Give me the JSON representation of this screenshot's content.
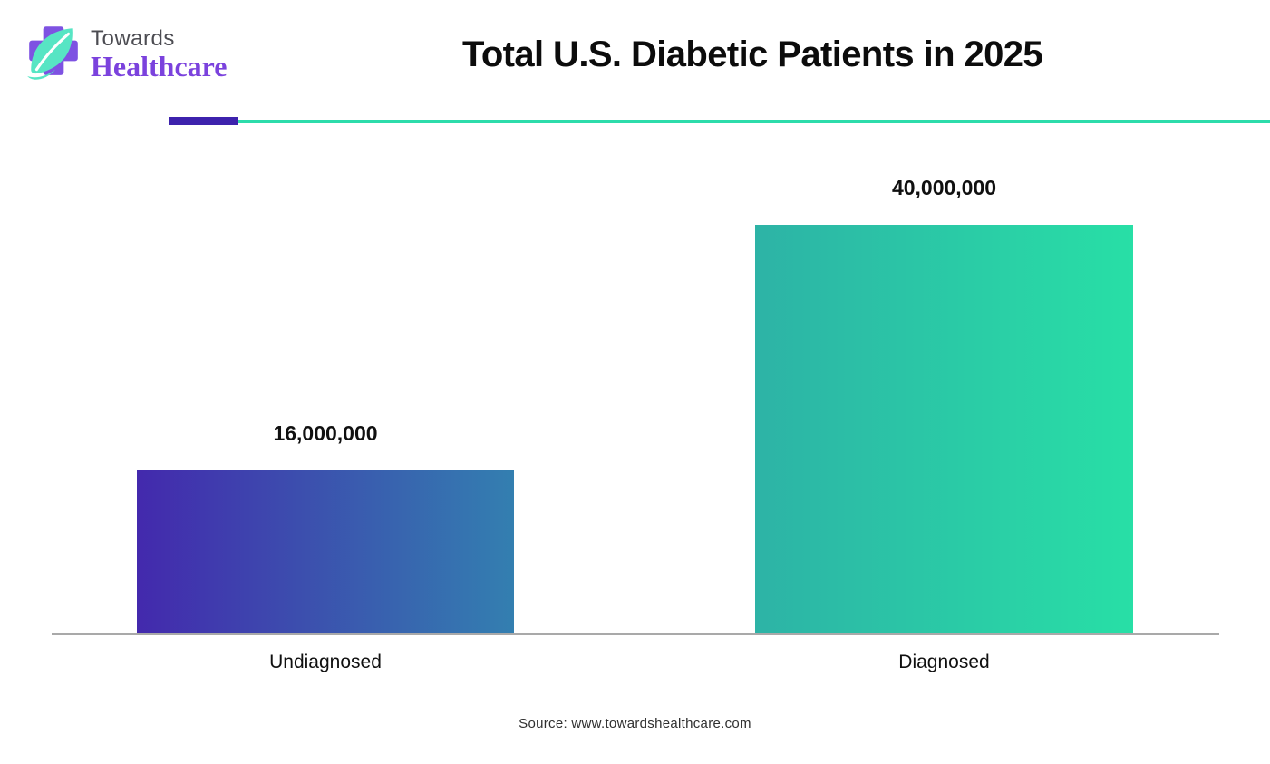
{
  "header": {
    "brand_line1": "Towards",
    "brand_line2": "Healthcare"
  },
  "chart_data": {
    "type": "bar",
    "title": "Total U.S. Diabetic Patients in 2025",
    "categories": [
      "Undiagnosed",
      "Diagnosed"
    ],
    "values": [
      16000000,
      40000000
    ],
    "value_labels": [
      "16,000,000",
      "40,000,000"
    ],
    "ylim": [
      0,
      40000000
    ],
    "grid": false,
    "legend": false,
    "bar_gradients": [
      {
        "from": "#4329ad",
        "to": "#337fb0"
      },
      {
        "from": "#2db3a6",
        "to": "#28dfa6"
      }
    ],
    "source": "Source: www.towardshealthcare.com"
  },
  "colors": {
    "accent_purple": "#3d22ad",
    "accent_teal": "#2ddcab",
    "axis_gray": "#a9a9a9",
    "brand_purple": "#7b42dd",
    "brand_gray": "#4c4c52",
    "logo_cross_purple": "#7e52e2",
    "logo_leaf_mint": "#57e5c4",
    "title_black": "#0c0c0c"
  }
}
